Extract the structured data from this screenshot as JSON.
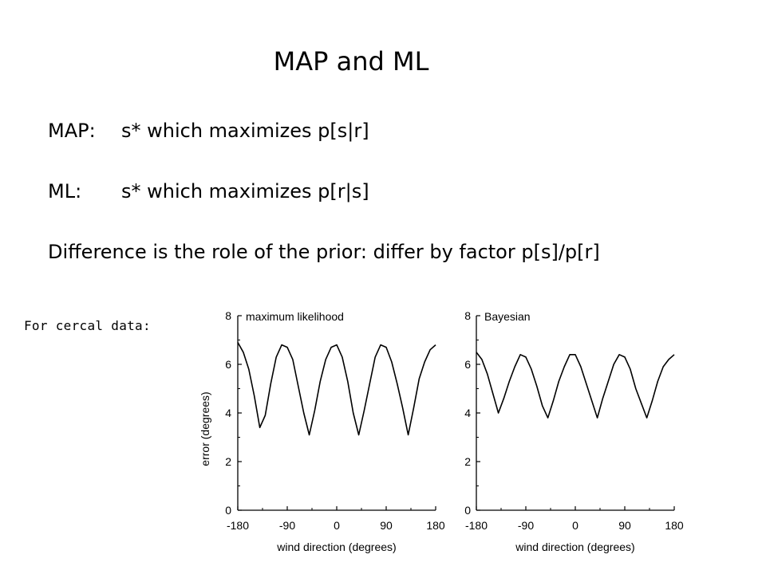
{
  "slide": {
    "title": "MAP and ML",
    "rows": [
      {
        "label": "MAP:",
        "text": "s* which maximizes p[s|r]"
      },
      {
        "label": "ML:",
        "text": "s* which maximizes p[r|s]"
      },
      {
        "text": "Difference is the role of the prior: differ by factor p[s]/p[r]"
      }
    ],
    "note": "For cercal data:"
  },
  "chart_data": [
    {
      "type": "line",
      "title": "maximum likelihood",
      "xlabel": "wind direction (degrees)",
      "ylabel": "error (degrees)",
      "xlim": [
        -180,
        180
      ],
      "ylim": [
        0,
        8
      ],
      "xticks": [
        "-180",
        "-90",
        "0",
        "90",
        "180"
      ],
      "yticks": [
        "0",
        "2",
        "4",
        "6",
        "8"
      ],
      "grid": false,
      "series": [
        {
          "x": [
            -180,
            -170,
            -160,
            -150,
            -140,
            -130,
            -120,
            -110,
            -100,
            -90,
            -80,
            -70,
            -60,
            -50,
            -40,
            -30,
            -20,
            -10,
            0,
            10,
            20,
            30,
            40,
            50,
            60,
            70,
            80,
            90,
            100,
            110,
            120,
            130,
            140,
            150,
            160,
            170,
            180
          ],
          "y": [
            6.9,
            6.5,
            5.8,
            4.7,
            3.4,
            3.9,
            5.2,
            6.3,
            6.8,
            6.7,
            6.2,
            5.1,
            4.0,
            3.1,
            4.1,
            5.3,
            6.2,
            6.7,
            6.8,
            6.3,
            5.3,
            4.0,
            3.1,
            4.1,
            5.2,
            6.3,
            6.8,
            6.7,
            6.1,
            5.2,
            4.2,
            3.1,
            4.2,
            5.4,
            6.1,
            6.6,
            6.8
          ]
        }
      ]
    },
    {
      "type": "line",
      "title": "Bayesian",
      "xlabel": "wind direction (degrees)",
      "ylabel": "",
      "xlim": [
        -180,
        180
      ],
      "ylim": [
        0,
        8
      ],
      "xticks": [
        "-180",
        "-90",
        "0",
        "90",
        "180"
      ],
      "yticks": [
        "0",
        "2",
        "4",
        "6",
        "8"
      ],
      "grid": false,
      "series": [
        {
          "x": [
            -180,
            -170,
            -160,
            -150,
            -140,
            -130,
            -120,
            -110,
            -100,
            -90,
            -80,
            -70,
            -60,
            -50,
            -40,
            -30,
            -20,
            -10,
            0,
            10,
            20,
            30,
            40,
            50,
            60,
            70,
            80,
            90,
            100,
            110,
            120,
            130,
            140,
            150,
            160,
            170,
            180
          ],
          "y": [
            6.5,
            6.2,
            5.6,
            4.8,
            4.0,
            4.6,
            5.3,
            5.9,
            6.4,
            6.3,
            5.8,
            5.1,
            4.3,
            3.8,
            4.5,
            5.3,
            5.9,
            6.4,
            6.4,
            5.9,
            5.2,
            4.5,
            3.8,
            4.6,
            5.3,
            6.0,
            6.4,
            6.3,
            5.8,
            5.0,
            4.4,
            3.8,
            4.5,
            5.3,
            5.9,
            6.2,
            6.4
          ]
        }
      ]
    }
  ]
}
